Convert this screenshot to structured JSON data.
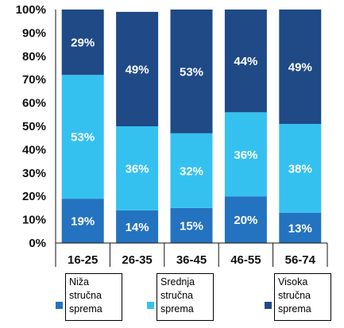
{
  "chart_data": {
    "type": "bar",
    "stacked": true,
    "categories": [
      "16-25",
      "26-35",
      "36-45",
      "46-55",
      "56-74"
    ],
    "series": [
      {
        "name": "Niža stručna sprema",
        "color": "#2473c0",
        "values": [
          19,
          14,
          15,
          20,
          13
        ],
        "labels": [
          "19%",
          "14%",
          "15%",
          "20%",
          "13%"
        ]
      },
      {
        "name": "Srednja stručna sprema",
        "color": "#35c1f0",
        "values": [
          53,
          36,
          32,
          36,
          38
        ],
        "labels": [
          "53%",
          "36%",
          "32%",
          "36%",
          "38%"
        ]
      },
      {
        "name": "Visoka stručna sprema",
        "color": "#1f4a86",
        "values": [
          29,
          49,
          53,
          44,
          49
        ],
        "labels": [
          "29%",
          "49%",
          "53%",
          "44%",
          "49%"
        ]
      }
    ],
    "y_ticks": [
      "0%",
      "10%",
      "20%",
      "30%",
      "40%",
      "50%",
      "60%",
      "70%",
      "80%",
      "90%",
      "100%"
    ],
    "ylim": [
      0,
      100
    ],
    "grid": false,
    "legend_position": "bottom",
    "title": "",
    "xlabel": "",
    "ylabel": ""
  },
  "legend": [
    {
      "line1": "Niža",
      "line2": "stručna",
      "line3": "sprema",
      "color": "#2473c0"
    },
    {
      "line1": "Srednja",
      "line2": "stručna",
      "line3": "sprema",
      "color": "#35c1f0"
    },
    {
      "line1": "Visoka",
      "line2": "stručna",
      "line3": "sprema",
      "color": "#1f4a86"
    }
  ]
}
